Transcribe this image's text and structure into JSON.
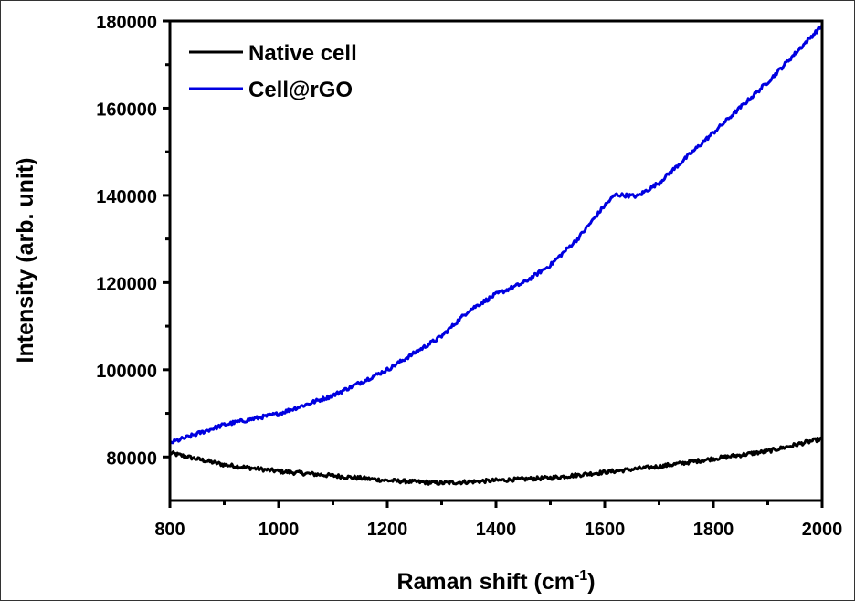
{
  "chart_data": {
    "type": "line",
    "title": "",
    "xlabel": "Raman shift (cm",
    "xlabel_sup": "-1",
    "xlabel_end": ")",
    "ylabel": "Intensity (arb. unit)",
    "xlim": [
      800,
      2000
    ],
    "ylim": [
      70000,
      180000
    ],
    "xticks": [
      800,
      1000,
      1200,
      1400,
      1600,
      1800,
      2000
    ],
    "xticks_minor": [
      900,
      1100,
      1300,
      1500,
      1700,
      1900
    ],
    "yticks": [
      80000,
      100000,
      120000,
      140000,
      160000,
      180000
    ],
    "yticks_minor": [
      90000,
      110000,
      130000,
      150000,
      170000
    ],
    "xtick_labels": [
      "800",
      "1000",
      "1200",
      "1400",
      "1600",
      "1800",
      "2000"
    ],
    "ytick_labels": [
      "80000",
      "100000",
      "120000",
      "140000",
      "160000",
      "180000"
    ],
    "grid": false,
    "legend_position": "top-left",
    "series": [
      {
        "name": "Native cell",
        "color": "#000000",
        "x": [
          800,
          900,
          1000,
          1100,
          1200,
          1300,
          1400,
          1500,
          1600,
          1700,
          1800,
          1900,
          2000
        ],
        "values": [
          80900,
          78200,
          76700,
          75700,
          74600,
          74000,
          74600,
          75200,
          76500,
          77800,
          79600,
          81300,
          84200
        ]
      },
      {
        "name": "Cell@rGO",
        "color": "#0000e0",
        "x": [
          800,
          900,
          1000,
          1100,
          1200,
          1300,
          1350,
          1400,
          1450,
          1500,
          1550,
          1600,
          1620,
          1660,
          1700,
          1800,
          1900,
          2000
        ],
        "values": [
          83200,
          87400,
          89900,
          94100,
          100000,
          107700,
          113600,
          117300,
          119900,
          124000,
          130000,
          137700,
          140200,
          139800,
          142900,
          154400,
          166000,
          179000
        ]
      }
    ]
  }
}
